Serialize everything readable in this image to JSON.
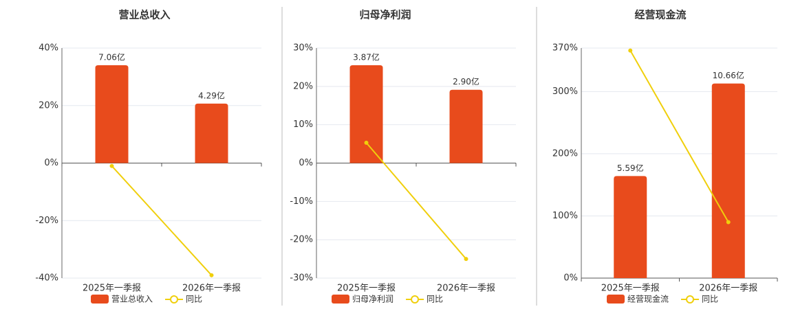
{
  "chart_data": [
    {
      "type": "combo",
      "title": "营业总收入",
      "categories": [
        "2025年一季报",
        "2026年一季报"
      ],
      "series": [
        {
          "name": "营业总收入",
          "type": "bar",
          "axis": "y2",
          "color": "#e84b1c",
          "values": [
            7.06,
            4.29
          ],
          "value_labels": [
            "7.06亿",
            "4.29亿"
          ]
        },
        {
          "name": "同比",
          "type": "line",
          "color": "#f0cf0c",
          "values": [
            -1,
            -39
          ]
        }
      ],
      "ylim": [
        -40,
        40
      ],
      "yticks": [
        {
          "value": -40,
          "label": "-40%"
        },
        {
          "value": -20,
          "label": "-20%"
        },
        {
          "value": 0,
          "label": "0%"
        },
        {
          "value": 20,
          "label": "20%"
        },
        {
          "value": 40,
          "label": "40%"
        }
      ],
      "y2lim": [
        -8.3,
        8.3
      ],
      "grid": true
    },
    {
      "type": "combo",
      "title": "归母净利润",
      "categories": [
        "2025年一季报",
        "2026年一季报"
      ],
      "series": [
        {
          "name": "归母净利润",
          "type": "bar",
          "axis": "y2",
          "color": "#e84b1c",
          "values": [
            3.87,
            2.9
          ],
          "value_labels": [
            "3.87亿",
            "2.90亿"
          ]
        },
        {
          "name": "同比",
          "type": "line",
          "color": "#f0cf0c",
          "values": [
            5.3,
            -25
          ]
        }
      ],
      "ylim": [
        -30,
        30
      ],
      "yticks": [
        {
          "value": -30,
          "label": "-30%"
        },
        {
          "value": -20,
          "label": "-20%"
        },
        {
          "value": -10,
          "label": "-10%"
        },
        {
          "value": 0,
          "label": "0%"
        },
        {
          "value": 10,
          "label": "10%"
        },
        {
          "value": 20,
          "label": "20%"
        },
        {
          "value": 30,
          "label": "30%"
        }
      ],
      "y2lim": [
        -4.55,
        4.55
      ],
      "grid": true
    },
    {
      "type": "combo",
      "title": "经营现金流",
      "categories": [
        "2025年一季报",
        "2026年一季报"
      ],
      "series": [
        {
          "name": "经营现金流",
          "type": "bar",
          "axis": "y2",
          "color": "#e84b1c",
          "values": [
            5.59,
            10.66
          ],
          "value_labels": [
            "5.59亿",
            "10.66亿"
          ]
        },
        {
          "name": "同比",
          "type": "line",
          "color": "#f0cf0c",
          "values": [
            366,
            90
          ]
        }
      ],
      "ylim": [
        0,
        370
      ],
      "yticks": [
        {
          "value": 0,
          "label": "0%"
        },
        {
          "value": 100,
          "label": "100%"
        },
        {
          "value": 200,
          "label": "200%"
        },
        {
          "value": 300,
          "label": "300%"
        },
        {
          "value": 370,
          "label": "370%"
        }
      ],
      "y2lim": [
        0,
        12.6
      ],
      "grid": true
    }
  ]
}
